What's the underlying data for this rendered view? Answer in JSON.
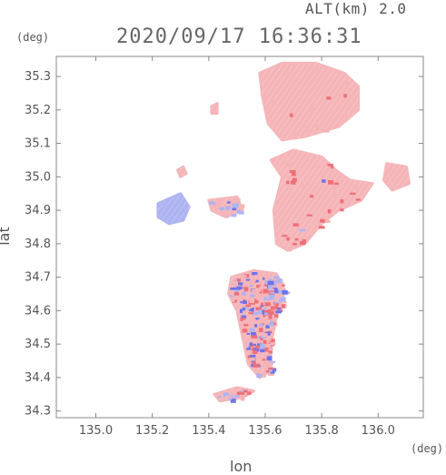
{
  "header": {
    "alt_label": "ALT(km) 2.0",
    "timestamp": "2020/09/17 16:36:31"
  },
  "chart_data": {
    "type": "heatmap",
    "title": "2020/09/17 16:36:31",
    "xlabel": "lon",
    "ylabel": "lat",
    "x_unit": "(deg)",
    "y_unit": "(deg)",
    "xlim": [
      134.86,
      136.16
    ],
    "ylim": [
      34.28,
      35.36
    ],
    "x_ticks": [
      "135.0",
      "135.2",
      "135.4",
      "135.6",
      "135.8",
      "136.0"
    ],
    "x_tick_values": [
      135.0,
      135.2,
      135.4,
      135.6,
      135.8,
      136.0
    ],
    "y_ticks": [
      "34.3",
      "34.4",
      "34.5",
      "34.6",
      "34.7",
      "34.8",
      "34.9",
      "35.0",
      "35.1",
      "35.2",
      "35.3"
    ],
    "y_tick_values": [
      34.3,
      34.4,
      34.5,
      34.6,
      34.7,
      34.8,
      34.9,
      35.0,
      35.1,
      35.2,
      35.3
    ],
    "colors": {
      "positive": "#f5b5b8",
      "negative": "#aeb4f2",
      "strong_positive": "#ee6f78",
      "strong_negative": "#6c73ec"
    },
    "regions": [
      {
        "sign": "positive",
        "points": [
          [
            135.58,
            35.31
          ],
          [
            135.66,
            35.34
          ],
          [
            135.78,
            35.34
          ],
          [
            135.88,
            35.31
          ],
          [
            135.93,
            35.27
          ],
          [
            135.93,
            35.2
          ],
          [
            135.86,
            35.15
          ],
          [
            135.74,
            35.12
          ],
          [
            135.66,
            35.11
          ],
          [
            135.61,
            35.16
          ],
          [
            135.59,
            35.24
          ]
        ]
      },
      {
        "sign": "positive",
        "points": [
          [
            135.7,
            35.08
          ],
          [
            135.8,
            35.06
          ],
          [
            135.85,
            35.02
          ],
          [
            135.9,
            34.99
          ],
          [
            135.98,
            34.98
          ],
          [
            135.94,
            34.93
          ],
          [
            135.86,
            34.9
          ],
          [
            135.8,
            34.86
          ],
          [
            135.74,
            34.8
          ],
          [
            135.68,
            34.78
          ],
          [
            135.64,
            34.8
          ],
          [
            135.63,
            34.9
          ],
          [
            135.66,
            35.0
          ],
          [
            135.62,
            35.05
          ]
        ]
      },
      {
        "sign": "positive",
        "points": [
          [
            136.03,
            35.04
          ],
          [
            136.1,
            35.03
          ],
          [
            136.11,
            34.98
          ],
          [
            136.05,
            34.96
          ],
          [
            136.02,
            34.99
          ]
        ]
      },
      {
        "sign": "positive",
        "points": [
          [
            135.4,
            34.93
          ],
          [
            135.5,
            34.94
          ],
          [
            135.52,
            34.9
          ],
          [
            135.46,
            34.88
          ],
          [
            135.41,
            34.9
          ]
        ]
      },
      {
        "sign": "negative",
        "points": [
          [
            135.22,
            34.92
          ],
          [
            135.3,
            34.95
          ],
          [
            135.33,
            34.91
          ],
          [
            135.31,
            34.87
          ],
          [
            135.26,
            34.86
          ],
          [
            135.22,
            34.88
          ]
        ]
      },
      {
        "sign": "positive",
        "points": [
          [
            135.48,
            34.7
          ],
          [
            135.56,
            34.72
          ],
          [
            135.64,
            34.71
          ],
          [
            135.67,
            34.66
          ],
          [
            135.64,
            34.58
          ],
          [
            135.62,
            34.5
          ],
          [
            135.62,
            34.42
          ],
          [
            135.58,
            34.4
          ],
          [
            135.54,
            34.44
          ],
          [
            135.52,
            34.52
          ],
          [
            135.5,
            34.6
          ],
          [
            135.47,
            34.65
          ]
        ]
      },
      {
        "sign": "positive",
        "points": [
          [
            135.29,
            35.02
          ],
          [
            135.31,
            35.03
          ],
          [
            135.32,
            35.01
          ],
          [
            135.3,
            35.0
          ]
        ]
      },
      {
        "sign": "positive",
        "points": [
          [
            135.41,
            35.21
          ],
          [
            135.43,
            35.22
          ],
          [
            135.43,
            35.19
          ],
          [
            135.41,
            35.19
          ]
        ]
      },
      {
        "sign": "positive",
        "points": [
          [
            135.42,
            34.35
          ],
          [
            135.5,
            34.37
          ],
          [
            135.56,
            34.36
          ],
          [
            135.52,
            34.34
          ],
          [
            135.44,
            34.33
          ]
        ]
      }
    ]
  }
}
